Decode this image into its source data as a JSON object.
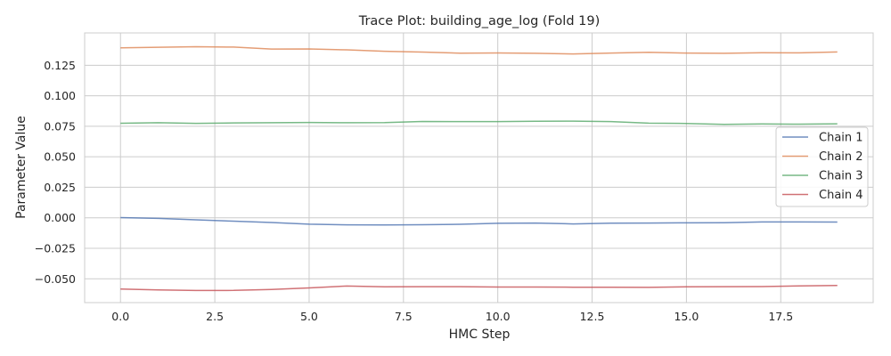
{
  "chart_data": {
    "type": "line",
    "title": "Trace Plot: building_age_log (Fold 19)",
    "xlabel": "HMC Step",
    "ylabel": "Parameter Value",
    "xlim": [
      -0.95,
      19.95
    ],
    "ylim": [
      -0.0695,
      0.1515
    ],
    "xticks": [
      0,
      2.5,
      5,
      7.5,
      10,
      12.5,
      15,
      17.5
    ],
    "xtick_labels": [
      "0.0",
      "2.5",
      "5.0",
      "7.5",
      "10.0",
      "12.5",
      "15.0",
      "17.5"
    ],
    "yticks": [
      -0.05,
      -0.025,
      0,
      0.025,
      0.05,
      0.075,
      0.1,
      0.125
    ],
    "ytick_labels": [
      "−0.050",
      "−0.025",
      "0.000",
      "0.025",
      "0.050",
      "0.075",
      "0.100",
      "0.125"
    ],
    "grid": true,
    "legend_position": "center-right",
    "x": [
      0,
      1,
      2,
      3,
      4,
      5,
      6,
      7,
      8,
      9,
      10,
      11,
      12,
      13,
      14,
      15,
      16,
      17,
      18,
      19
    ],
    "series": [
      {
        "name": "Chain 1",
        "color": "#4c72b0",
        "values": [
          0.0002,
          -0.0005,
          -0.0017,
          -0.0028,
          -0.0039,
          -0.0052,
          -0.0058,
          -0.0059,
          -0.0057,
          -0.0053,
          -0.0045,
          -0.0043,
          -0.005,
          -0.0044,
          -0.0043,
          -0.0041,
          -0.004,
          -0.0034,
          -0.0034,
          -0.0035
        ]
      },
      {
        "name": "Chain 2",
        "color": "#dd8452",
        "values": [
          0.1393,
          0.1397,
          0.1402,
          0.1399,
          0.1383,
          0.1384,
          0.1376,
          0.1365,
          0.1358,
          0.1349,
          0.1351,
          0.1348,
          0.1343,
          0.135,
          0.1356,
          0.135,
          0.1348,
          0.1353,
          0.1352,
          0.1359
        ]
      },
      {
        "name": "Chain 3",
        "color": "#55a868",
        "values": [
          0.0775,
          0.0779,
          0.0774,
          0.0777,
          0.0779,
          0.0781,
          0.0779,
          0.078,
          0.0789,
          0.0788,
          0.0788,
          0.0791,
          0.0792,
          0.0788,
          0.0776,
          0.0773,
          0.0766,
          0.0769,
          0.0767,
          0.077
        ]
      },
      {
        "name": "Chain 4",
        "color": "#c44e52",
        "values": [
          -0.0584,
          -0.0591,
          -0.0596,
          -0.0595,
          -0.0587,
          -0.0575,
          -0.0559,
          -0.0566,
          -0.0565,
          -0.0565,
          -0.0567,
          -0.0567,
          -0.0569,
          -0.0569,
          -0.057,
          -0.0566,
          -0.0565,
          -0.0564,
          -0.0558,
          -0.0555
        ]
      }
    ]
  }
}
